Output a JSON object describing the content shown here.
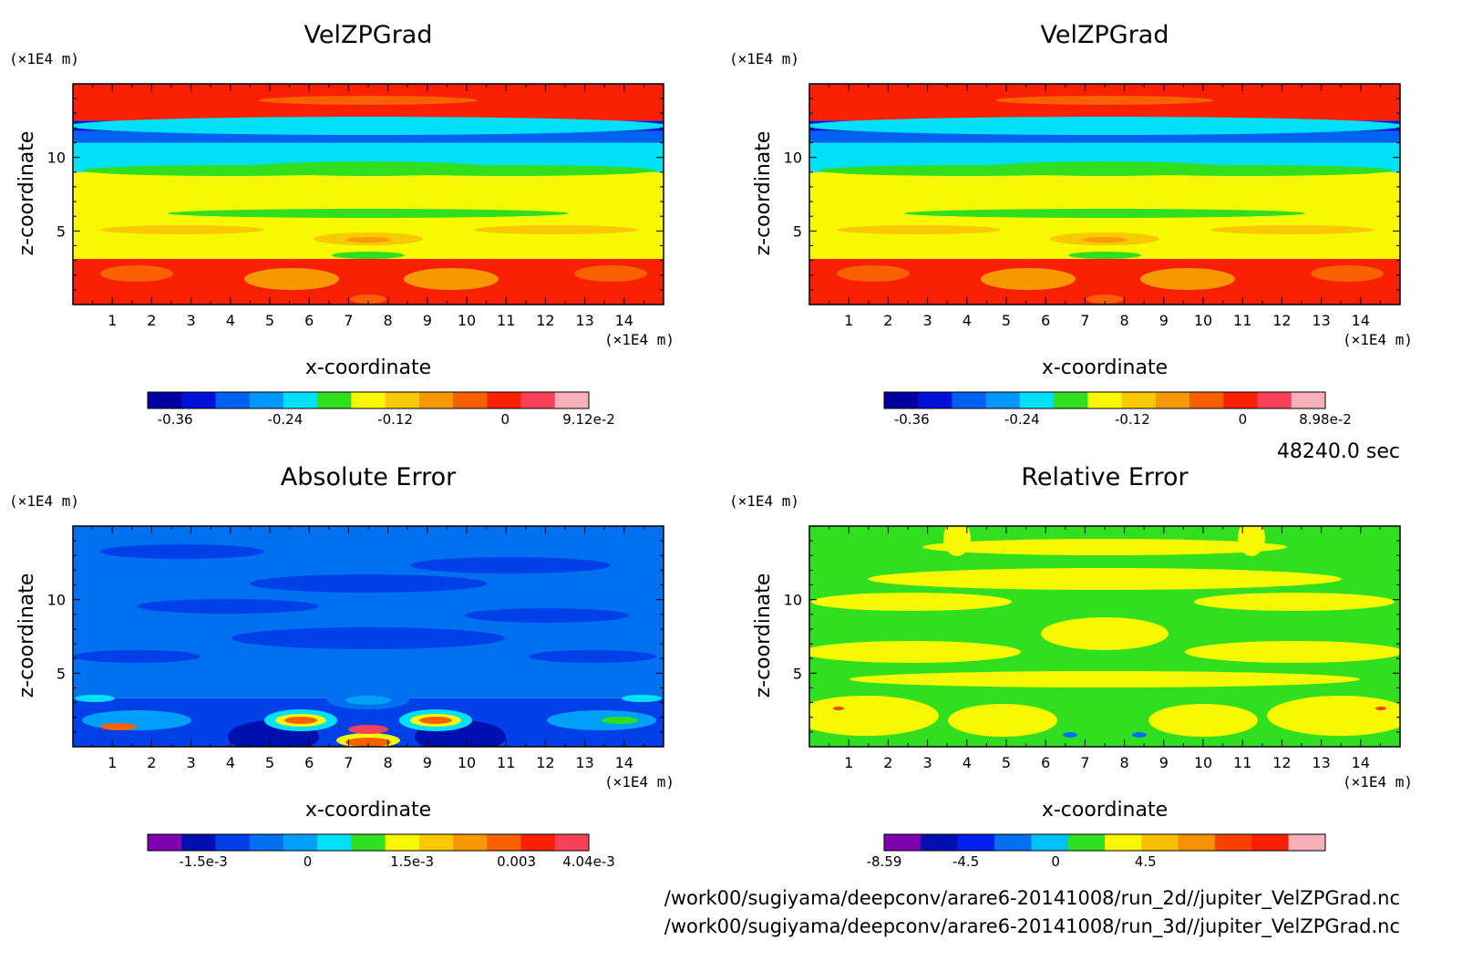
{
  "time_label": "48240.0 sec",
  "file_paths": [
    "/work00/sugiyama/deepconv/arare6-20141008/run_2d//jupiter_VelZPGrad.nc",
    "/work00/sugiyama/deepconv/arare6-20141008/run_3d//jupiter_VelZPGrad.nc"
  ],
  "chart_data": [
    {
      "type": "heatmap",
      "title": "VelZPGrad",
      "xlabel": "x-coordinate",
      "ylabel": "z-coordinate",
      "x_unit": "(×1E4 m)",
      "z_unit": "(×1E4 m)",
      "xlim": [
        0,
        15
      ],
      "ylim": [
        0,
        15
      ],
      "x_ticks": [
        1,
        2,
        3,
        4,
        5,
        6,
        7,
        8,
        9,
        10,
        11,
        12,
        13,
        14
      ],
      "y_ticks": [
        5,
        10
      ],
      "colorbar": {
        "colors": [
          "#0000a0",
          "#0010d8",
          "#0060f0",
          "#0098f8",
          "#00e0f8",
          "#30e020",
          "#f8f800",
          "#f8c800",
          "#f89800",
          "#f86000",
          "#f82000",
          "#f84058",
          "#f8b0b8"
        ],
        "tick_labels": [
          "-0.36",
          "-0.24",
          "-0.12",
          "0",
          "9.12e-2"
        ],
        "tick_values": [
          -0.36,
          -0.24,
          -0.12,
          0,
          0.0912
        ],
        "range": [
          -0.39,
          0.0912
        ]
      },
      "z_bands": [
        {
          "z": [
            0,
            3.1
          ],
          "color": "#f82000"
        },
        {
          "z": [
            3.1,
            9.0
          ],
          "color": "#f8f800"
        },
        {
          "z": [
            9.0,
            11.0
          ],
          "color": "#00e0f8"
        },
        {
          "z": [
            11.0,
            11.8
          ],
          "color": "#0060f0"
        },
        {
          "z": [
            11.8,
            12.5
          ],
          "color": "#0010d8"
        },
        {
          "z": [
            12.5,
            15
          ],
          "color": "#f82000"
        }
      ]
    },
    {
      "type": "heatmap",
      "title": "VelZPGrad",
      "xlabel": "x-coordinate",
      "ylabel": "z-coordinate",
      "x_unit": "(×1E4 m)",
      "z_unit": "(×1E4 m)",
      "xlim": [
        0,
        15
      ],
      "ylim": [
        0,
        15
      ],
      "x_ticks": [
        1,
        2,
        3,
        4,
        5,
        6,
        7,
        8,
        9,
        10,
        11,
        12,
        13,
        14
      ],
      "y_ticks": [
        5,
        10
      ],
      "colorbar": {
        "colors": [
          "#0000a0",
          "#0010d8",
          "#0060f0",
          "#0098f8",
          "#00e0f8",
          "#30e020",
          "#f8f800",
          "#f8c800",
          "#f89800",
          "#f86000",
          "#f82000",
          "#f84058",
          "#f8b0b8"
        ],
        "tick_labels": [
          "-0.36",
          "-0.24",
          "-0.12",
          "0",
          "8.98e-2"
        ],
        "tick_values": [
          -0.36,
          -0.24,
          -0.12,
          0,
          0.0898
        ],
        "range": [
          -0.39,
          0.0898
        ]
      },
      "z_bands": [
        {
          "z": [
            0,
            3.1
          ],
          "color": "#f82000"
        },
        {
          "z": [
            3.1,
            9.0
          ],
          "color": "#f8f800"
        },
        {
          "z": [
            9.0,
            11.0
          ],
          "color": "#00e0f8"
        },
        {
          "z": [
            11.0,
            11.8
          ],
          "color": "#0060f0"
        },
        {
          "z": [
            11.8,
            12.5
          ],
          "color": "#0010d8"
        },
        {
          "z": [
            12.5,
            15
          ],
          "color": "#f82000"
        }
      ]
    },
    {
      "type": "heatmap",
      "title": "Absolute Error",
      "xlabel": "x-coordinate",
      "ylabel": "z-coordinate",
      "x_unit": "(×1E4 m)",
      "z_unit": "(×1E4 m)",
      "xlim": [
        0,
        15
      ],
      "ylim": [
        0,
        15
      ],
      "x_ticks": [
        1,
        2,
        3,
        4,
        5,
        6,
        7,
        8,
        9,
        10,
        11,
        12,
        13,
        14
      ],
      "y_ticks": [
        5,
        10
      ],
      "colorbar": {
        "colors": [
          "#8000b0",
          "#0010b0",
          "#0040e8",
          "#0070f0",
          "#00a0f8",
          "#00e0f8",
          "#30e020",
          "#f8f800",
          "#f8c800",
          "#f89800",
          "#f86000",
          "#f82000",
          "#f84058"
        ],
        "tick_labels": [
          "-1.5e-3",
          "0",
          "1.5e-3",
          "0.003",
          "4.04e-3"
        ],
        "tick_values": [
          -0.0015,
          0,
          0.0015,
          0.003,
          0.00404
        ],
        "range": [
          -0.0023,
          0.00404
        ]
      },
      "z_bands": [
        {
          "z": [
            0,
            3.3
          ],
          "color": "#0040e8"
        },
        {
          "z": [
            3.3,
            15
          ],
          "color": "#0070f0"
        }
      ]
    },
    {
      "type": "heatmap",
      "title": "Relative Error",
      "xlabel": "x-coordinate",
      "ylabel": "z-coordinate",
      "x_unit": "(×1E4 m)",
      "z_unit": "(×1E4 m)",
      "xlim": [
        0,
        15
      ],
      "ylim": [
        0,
        15
      ],
      "x_ticks": [
        1,
        2,
        3,
        4,
        5,
        6,
        7,
        8,
        9,
        10,
        11,
        12,
        13,
        14
      ],
      "y_ticks": [
        5,
        10
      ],
      "colorbar": {
        "colors": [
          "#8000b0",
          "#0010b0",
          "#0020f0",
          "#0070f0",
          "#00c0f8",
          "#30e020",
          "#f8f800",
          "#f8c000",
          "#f89000",
          "#f84000",
          "#f82000",
          "#f8b0b8"
        ],
        "tick_labels": [
          "-8.59",
          "-4.5",
          "0",
          "4.5"
        ],
        "tick_values": [
          -8.59,
          -4.5,
          0,
          4.5
        ],
        "range": [
          -8.59,
          13.5
        ]
      },
      "z_bands": [
        {
          "z": [
            0,
            15
          ],
          "color": "#30e020"
        }
      ]
    }
  ]
}
